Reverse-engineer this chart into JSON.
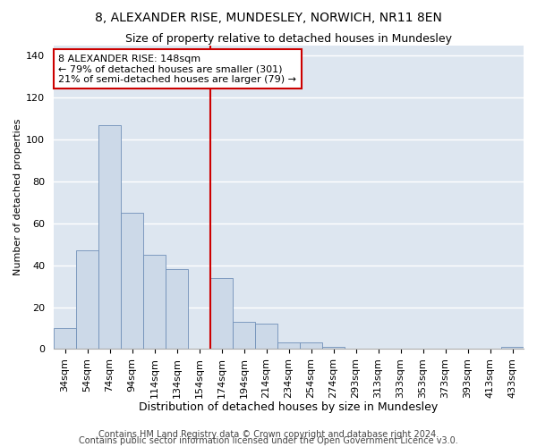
{
  "title": "8, ALEXANDER RISE, MUNDESLEY, NORWICH, NR11 8EN",
  "subtitle": "Size of property relative to detached houses in Mundesley",
  "xlabel": "Distribution of detached houses by size in Mundesley",
  "ylabel": "Number of detached properties",
  "categories": [
    "34sqm",
    "54sqm",
    "74sqm",
    "94sqm",
    "114sqm",
    "134sqm",
    "154sqm",
    "174sqm",
    "194sqm",
    "214sqm",
    "234sqm",
    "254sqm",
    "274sqm",
    "293sqm",
    "313sqm",
    "333sqm",
    "353sqm",
    "373sqm",
    "393sqm",
    "413sqm",
    "433sqm"
  ],
  "values": [
    10,
    47,
    107,
    65,
    45,
    38,
    0,
    34,
    13,
    12,
    3,
    3,
    1,
    0,
    0,
    0,
    0,
    0,
    0,
    0,
    1
  ],
  "bar_color": "#ccd9e8",
  "bar_edge_color": "#7090b8",
  "vline_x_index": 6,
  "vline_color": "#cc0000",
  "annotation_text": "8 ALEXANDER RISE: 148sqm\n← 79% of detached houses are smaller (301)\n21% of semi-detached houses are larger (79) →",
  "annotation_box_color": "#ffffff",
  "annotation_box_edge": "#cc0000",
  "ylim": [
    0,
    145
  ],
  "yticks": [
    0,
    20,
    40,
    60,
    80,
    100,
    120,
    140
  ],
  "background_color": "#dde6f0",
  "grid_color": "#ffffff",
  "footer1": "Contains HM Land Registry data © Crown copyright and database right 2024.",
  "footer2": "Contains public sector information licensed under the Open Government Licence v3.0.",
  "title_fontsize": 10,
  "subtitle_fontsize": 9,
  "xlabel_fontsize": 9,
  "ylabel_fontsize": 8,
  "tick_fontsize": 8,
  "footer_fontsize": 7,
  "annot_fontsize": 8
}
